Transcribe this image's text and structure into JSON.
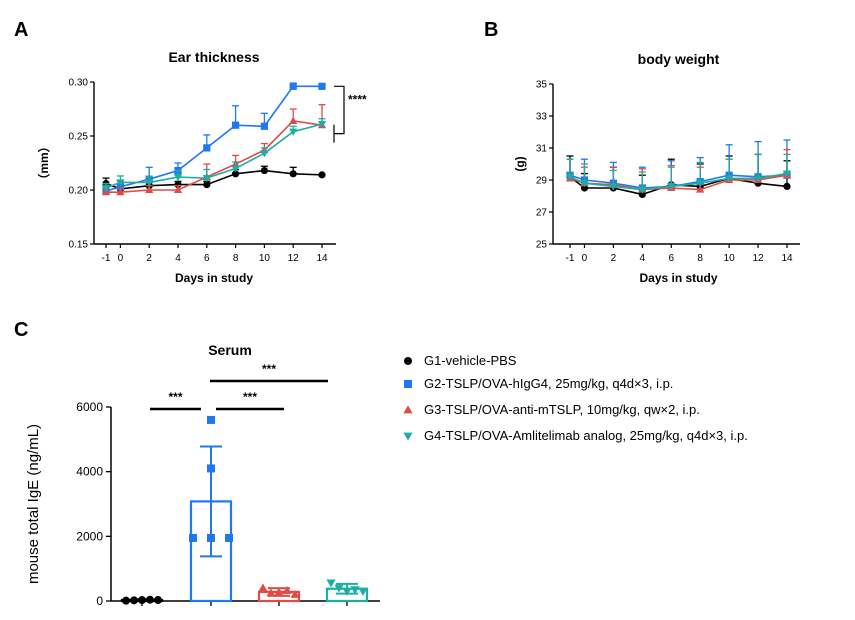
{
  "colors": {
    "G1": "#000000",
    "G2": "#1f77f2",
    "G3": "#e24a45",
    "G4": "#1aaea4"
  },
  "legend": [
    {
      "name": "G1-vehicle-PBS",
      "color": "#000000",
      "marker": "circle"
    },
    {
      "name": "G2-TSLP/OVA-hIgG4, 25mg/kg, q4d×3, i.p.",
      "color": "#1f77f2",
      "marker": "square"
    },
    {
      "name": "G3-TSLP/OVA-anti-mTSLP, 10mg/kg, qw×2, i.p.",
      "color": "#e24a45",
      "marker": "triangle-up"
    },
    {
      "name": "G4-TSLP/OVA-Amlitelimab analog, 25mg/kg, q4d×3, i.p.",
      "color": "#1aaea4",
      "marker": "triangle-down"
    }
  ],
  "chart_data": [
    {
      "panel": "A",
      "type": "line",
      "title": "Ear thickness",
      "xlabel": "Days in study",
      "ylabel": "（mm）",
      "x": [
        -1,
        0,
        2,
        4,
        6,
        8,
        10,
        12,
        14
      ],
      "xticks": [
        "-1",
        "0",
        "2",
        "4",
        "6",
        "8",
        "10",
        "12",
        "14"
      ],
      "ylim": [
        0.15,
        0.3
      ],
      "yticks": [
        "0.15",
        "0.20",
        "0.25",
        "0.30"
      ],
      "significance": "****",
      "series": [
        {
          "color": "#000000",
          "marker": "circle",
          "values": [
            0.206,
            0.201,
            0.204,
            0.205,
            0.205,
            0.215,
            0.218,
            0.215,
            0.214
          ],
          "errors": [
            0.005,
            0.004,
            0.003,
            0.003,
            0.003,
            0.004,
            0.004,
            0.006,
            0.0
          ]
        },
        {
          "color": "#1f77f2",
          "marker": "square",
          "values": [
            0.199,
            0.203,
            0.21,
            0.218,
            0.239,
            0.26,
            0.259,
            0.296,
            0.296
          ],
          "errors": [
            0.004,
            0.005,
            0.011,
            0.007,
            0.012,
            0.018,
            0.012,
            0.003,
            0.0
          ]
        },
        {
          "color": "#e24a45",
          "marker": "triangle-up",
          "values": [
            0.198,
            0.198,
            0.2,
            0.2,
            0.212,
            0.224,
            0.237,
            0.264,
            0.26
          ],
          "errors": [
            0.003,
            0.004,
            0.004,
            0.004,
            0.012,
            0.008,
            0.006,
            0.011,
            0.019
          ]
        },
        {
          "color": "#1aaea4",
          "marker": "triangle-down",
          "values": [
            0.202,
            0.207,
            0.207,
            0.212,
            0.211,
            0.22,
            0.234,
            0.254,
            0.261
          ],
          "errors": [
            0.004,
            0.006,
            0.005,
            0.006,
            0.008,
            0.006,
            0.005,
            0.005,
            0.005
          ]
        }
      ]
    },
    {
      "panel": "B",
      "type": "line",
      "title": "body weight",
      "xlabel": "Days in study",
      "ylabel": "(g)",
      "x": [
        -1,
        0,
        2,
        4,
        6,
        8,
        10,
        12,
        14
      ],
      "xticks": [
        "-1",
        "0",
        "2",
        "4",
        "6",
        "8",
        "10",
        "12",
        "14"
      ],
      "ylim": [
        25,
        35
      ],
      "yticks": [
        "25",
        "27",
        "29",
        "31",
        "33",
        "35"
      ],
      "series": [
        {
          "color": "#000000",
          "marker": "circle",
          "values": [
            29.2,
            28.5,
            28.5,
            28.1,
            28.7,
            28.6,
            29.1,
            28.8,
            28.6
          ],
          "errors": [
            1.3,
            0.9,
            1.3,
            1.2,
            1.6,
            1.4,
            1.4,
            1.8,
            1.6
          ]
        },
        {
          "color": "#1f77f2",
          "marker": "square",
          "values": [
            29.3,
            29.0,
            28.8,
            28.5,
            28.6,
            28.9,
            29.3,
            29.2,
            29.3
          ],
          "errors": [
            1.0,
            1.3,
            1.3,
            1.3,
            1.6,
            1.5,
            1.9,
            2.2,
            2.2
          ]
        },
        {
          "color": "#e24a45",
          "marker": "triangle-up",
          "values": [
            29.1,
            28.8,
            28.7,
            28.4,
            28.5,
            28.4,
            29.0,
            29.0,
            29.3
          ],
          "errors": [
            1.2,
            1.0,
            1.1,
            1.3,
            1.4,
            1.4,
            1.3,
            1.6,
            1.6
          ]
        },
        {
          "color": "#1aaea4",
          "marker": "triangle-down",
          "values": [
            29.2,
            28.8,
            28.6,
            28.4,
            28.6,
            28.8,
            29.1,
            29.1,
            29.4
          ],
          "errors": [
            1.1,
            1.2,
            1.0,
            1.1,
            1.2,
            1.3,
            1.2,
            1.5,
            1.2
          ]
        }
      ]
    },
    {
      "panel": "C",
      "type": "bar",
      "title": "Serum",
      "ylabel": "mouse total IgE (ng/mL)",
      "ylim": [
        0,
        6000
      ],
      "yticks": [
        "0",
        "2000",
        "4000",
        "6000"
      ],
      "bars": [
        {
          "color": "#000000",
          "marker": "circle",
          "mean": 30,
          "sd": 20,
          "points": [
            10,
            20,
            30,
            40,
            30
          ]
        },
        {
          "color": "#1f77f2",
          "marker": "square",
          "mean": 3080,
          "sd": 1700,
          "points": [
            5600,
            4100,
            1950,
            1950,
            1950
          ]
        },
        {
          "color": "#e24a45",
          "marker": "triangle-up",
          "mean": 280,
          "sd": 120,
          "points": [
            400,
            250,
            280,
            320,
            200
          ]
        },
        {
          "color": "#1aaea4",
          "marker": "triangle-down",
          "mean": 380,
          "sd": 150,
          "points": [
            560,
            400,
            300,
            350,
            300
          ]
        }
      ],
      "significance": [
        {
          "from": 0,
          "to": 1,
          "label": "***"
        },
        {
          "from": 1,
          "to": 2,
          "label": "***"
        },
        {
          "from": 1,
          "to": 3,
          "label": "***"
        }
      ]
    }
  ],
  "panel_labels": [
    "A",
    "B",
    "C"
  ]
}
